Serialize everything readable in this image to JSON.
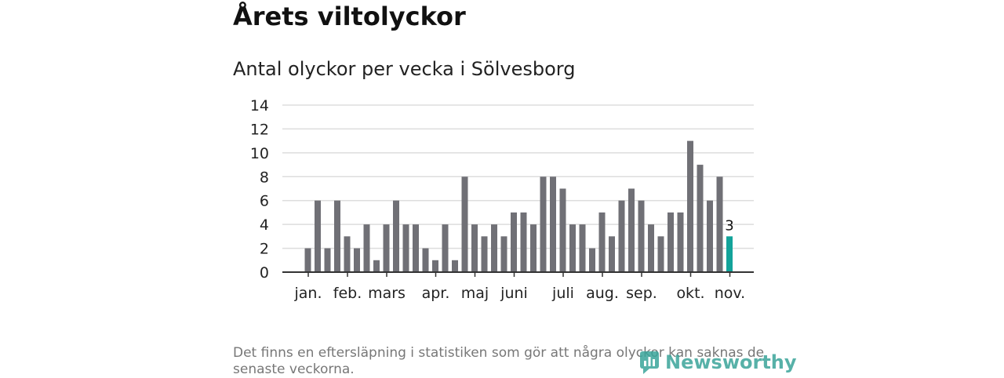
{
  "title": "Årets viltolyckor",
  "subtitle": "Antal olyckor per vecka i Sölvesborg",
  "footnote": "Det finns en eftersläpning i statistiken som gör att några olyckor kan saknas de senaste veckorna.",
  "logo_text": "Newsworthy",
  "colors": {
    "bar": "#707076",
    "highlight": "#13a39a",
    "grid": "#dddddd",
    "axis": "#333333",
    "logo": "#3aa49a"
  },
  "chart_data": {
    "type": "bar",
    "title": "Antal olyckor per vecka i Sölvesborg",
    "xlabel": "",
    "ylabel": "",
    "ylim": [
      0,
      14
    ],
    "yticks": [
      0,
      2,
      4,
      6,
      8,
      10,
      12,
      14
    ],
    "grid": true,
    "weeks": [
      1,
      2,
      3,
      4,
      5,
      6,
      7,
      8,
      9,
      10,
      11,
      12,
      13,
      14,
      15,
      16,
      17,
      18,
      19,
      20,
      21,
      22,
      23,
      24,
      25,
      26,
      27,
      28,
      29,
      30,
      31,
      32,
      33,
      34,
      35,
      36,
      37,
      38,
      39,
      40,
      41,
      42,
      43,
      44
    ],
    "values": [
      2,
      6,
      2,
      6,
      3,
      2,
      4,
      1,
      4,
      6,
      4,
      4,
      2,
      1,
      4,
      1,
      8,
      4,
      3,
      4,
      3,
      5,
      5,
      4,
      8,
      8,
      7,
      4,
      4,
      2,
      5,
      3,
      6,
      7,
      6,
      4,
      3,
      5,
      5,
      11,
      9,
      6,
      8,
      3
    ],
    "highlight_index": 43,
    "highlight_label": "3",
    "month_labels": [
      {
        "label": "jan.",
        "week": 1.5
      },
      {
        "label": "feb.",
        "week": 5.5
      },
      {
        "label": "mars",
        "week": 9.5
      },
      {
        "label": "apr.",
        "week": 14.5
      },
      {
        "label": "maj",
        "week": 18.5
      },
      {
        "label": "juni",
        "week": 22.5
      },
      {
        "label": "juli",
        "week": 27.5
      },
      {
        "label": "aug.",
        "week": 31.5
      },
      {
        "label": "sep.",
        "week": 35.5
      },
      {
        "label": "okt.",
        "week": 40.5
      },
      {
        "label": "nov.",
        "week": 44.5
      }
    ]
  }
}
